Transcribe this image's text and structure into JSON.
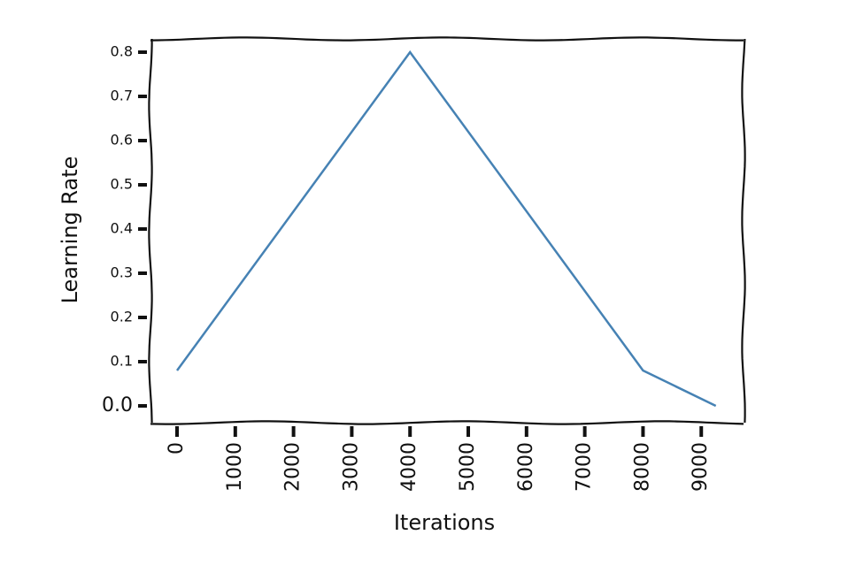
{
  "chart_data": {
    "type": "line",
    "x": [
      0,
      4000,
      8000,
      9250
    ],
    "values": [
      0.08,
      0.8,
      0.08,
      0.0
    ],
    "color": "#4682b4",
    "xlabel": "Iterations",
    "ylabel": "Learning Rate",
    "xlim": [
      -456,
      9726
    ],
    "ylim": [
      -0.038,
      0.83
    ],
    "xticks": [
      0,
      1000,
      2000,
      3000,
      4000,
      5000,
      6000,
      7000,
      8000,
      9000
    ],
    "yticks": [
      {
        "value": 0,
        "label": "0.0"
      },
      0.1,
      0.2,
      0.3,
      0.4,
      0.5,
      0.6,
      0.7,
      0.8
    ]
  }
}
